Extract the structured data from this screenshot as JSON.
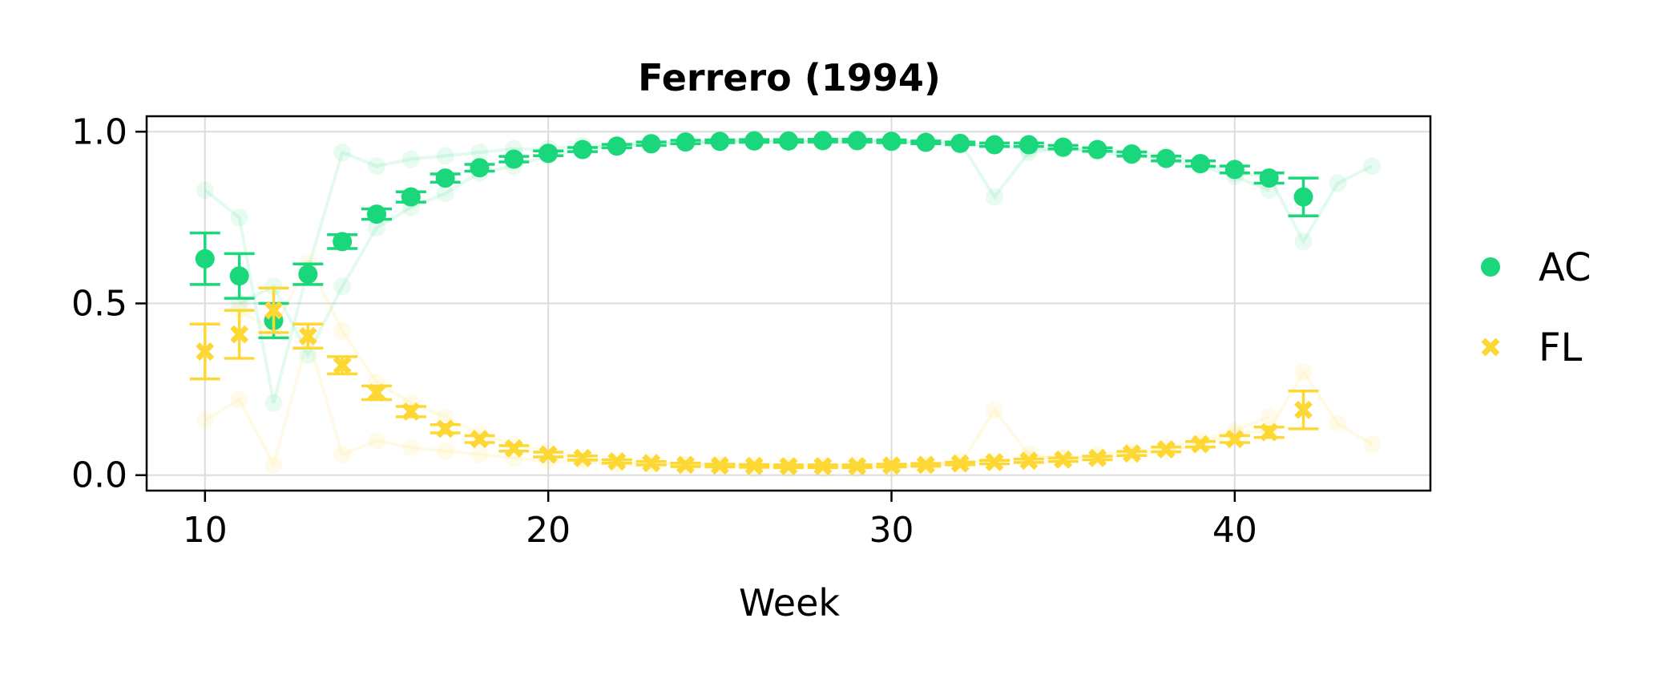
{
  "chart_data": {
    "type": "scatter",
    "title": "Ferrero (1994)",
    "xlabel": "Week",
    "ylabel": "",
    "xlim": [
      8.3,
      45.7
    ],
    "ylim": [
      -0.045,
      1.045
    ],
    "xticks": [
      10,
      20,
      30,
      40
    ],
    "yticks": [
      0.0,
      0.5,
      1.0
    ],
    "xtick_labels": [
      "10",
      "20",
      "30",
      "40"
    ],
    "ytick_labels": [
      "0.0",
      "0.5",
      "1.0"
    ],
    "grid": true,
    "legend_position": "right",
    "series": [
      {
        "name": "AC",
        "marker": "circle",
        "color": "#19d77a",
        "x": [
          10,
          11,
          12,
          13,
          14,
          15,
          16,
          17,
          18,
          19,
          20,
          21,
          22,
          23,
          24,
          25,
          26,
          27,
          28,
          29,
          30,
          31,
          32,
          33,
          34,
          35,
          36,
          37,
          38,
          39,
          40,
          41,
          42
        ],
        "y": [
          0.63,
          0.58,
          0.45,
          0.585,
          0.68,
          0.76,
          0.81,
          0.865,
          0.895,
          0.92,
          0.937,
          0.948,
          0.958,
          0.965,
          0.97,
          0.972,
          0.973,
          0.973,
          0.974,
          0.974,
          0.972,
          0.969,
          0.966,
          0.962,
          0.962,
          0.955,
          0.948,
          0.935,
          0.922,
          0.907,
          0.89,
          0.865,
          0.81
        ],
        "err": [
          0.075,
          0.065,
          0.05,
          0.03,
          0.02,
          0.015,
          0.015,
          0.012,
          0.01,
          0.008,
          0.007,
          0.006,
          0.005,
          0.005,
          0.005,
          0.004,
          0.004,
          0.004,
          0.004,
          0.004,
          0.004,
          0.004,
          0.004,
          0.005,
          0.005,
          0.005,
          0.005,
          0.006,
          0.007,
          0.008,
          0.01,
          0.015,
          0.055
        ]
      },
      {
        "name": "FL",
        "marker": "x",
        "color": "#fdd835",
        "x": [
          10,
          11,
          12,
          13,
          14,
          15,
          16,
          17,
          18,
          19,
          20,
          21,
          22,
          23,
          24,
          25,
          26,
          27,
          28,
          29,
          30,
          31,
          32,
          33,
          34,
          35,
          36,
          37,
          38,
          39,
          40,
          41,
          42
        ],
        "y": [
          0.36,
          0.41,
          0.48,
          0.405,
          0.32,
          0.24,
          0.185,
          0.135,
          0.105,
          0.078,
          0.06,
          0.05,
          0.04,
          0.035,
          0.03,
          0.028,
          0.027,
          0.026,
          0.026,
          0.026,
          0.028,
          0.03,
          0.034,
          0.038,
          0.042,
          0.045,
          0.05,
          0.063,
          0.075,
          0.09,
          0.105,
          0.125,
          0.19
        ],
        "err": [
          0.08,
          0.07,
          0.065,
          0.035,
          0.025,
          0.02,
          0.015,
          0.012,
          0.01,
          0.008,
          0.007,
          0.006,
          0.005,
          0.005,
          0.005,
          0.004,
          0.004,
          0.004,
          0.004,
          0.004,
          0.004,
          0.004,
          0.004,
          0.005,
          0.005,
          0.005,
          0.005,
          0.006,
          0.007,
          0.008,
          0.01,
          0.015,
          0.055
        ]
      }
    ],
    "individual_traces_note_free": true,
    "individual_traces": {
      "AC": [
        {
          "x": [
            10,
            11,
            12,
            13,
            14,
            15,
            16,
            17,
            18,
            19,
            20,
            21,
            22,
            23,
            24,
            25,
            26,
            27,
            28,
            29,
            30,
            31,
            32,
            33,
            34,
            35,
            36,
            37,
            38,
            39,
            40,
            41,
            42,
            43,
            44
          ],
          "y": [
            0.83,
            0.75,
            0.21,
            0.6,
            0.94,
            0.9,
            0.92,
            0.93,
            0.94,
            0.95,
            0.95,
            0.96,
            0.96,
            0.97,
            0.97,
            0.97,
            0.98,
            0.97,
            0.98,
            0.98,
            0.97,
            0.97,
            0.97,
            0.81,
            0.94,
            0.95,
            0.95,
            0.94,
            0.93,
            0.91,
            0.88,
            0.87,
            0.68,
            0.85,
            0.9
          ]
        },
        {
          "x": [
            11,
            12,
            13,
            14,
            15,
            16,
            17,
            18,
            19,
            20,
            21,
            22,
            23,
            24,
            25,
            26,
            27,
            28,
            29,
            30,
            31,
            32,
            33,
            34,
            35,
            36,
            37,
            38,
            39,
            40,
            41
          ],
          "y": [
            0.5,
            0.55,
            0.35,
            0.55,
            0.72,
            0.78,
            0.82,
            0.88,
            0.9,
            0.93,
            0.95,
            0.96,
            0.96,
            0.97,
            0.97,
            0.97,
            0.97,
            0.97,
            0.97,
            0.97,
            0.97,
            0.96,
            0.96,
            0.95,
            0.95,
            0.94,
            0.93,
            0.92,
            0.9,
            0.87,
            0.83
          ]
        }
      ],
      "FL": [
        {
          "x": [
            10,
            11,
            12,
            13,
            14,
            15,
            16,
            17,
            18,
            19,
            20,
            21,
            22,
            23,
            24,
            25,
            26,
            27,
            28,
            29,
            30,
            31,
            32,
            33,
            34,
            35,
            36,
            37,
            38,
            39,
            40,
            41,
            42,
            43,
            44
          ],
          "y": [
            0.16,
            0.22,
            0.03,
            0.4,
            0.06,
            0.1,
            0.08,
            0.07,
            0.06,
            0.05,
            0.04,
            0.04,
            0.03,
            0.03,
            0.03,
            0.03,
            0.02,
            0.02,
            0.02,
            0.02,
            0.02,
            0.03,
            0.03,
            0.19,
            0.06,
            0.05,
            0.05,
            0.06,
            0.07,
            0.09,
            0.12,
            0.13,
            0.3,
            0.15,
            0.09
          ]
        },
        {
          "x": [
            11,
            12,
            13,
            14,
            15,
            16,
            17,
            18,
            19,
            20,
            21,
            22,
            23,
            24,
            25,
            26,
            27,
            28,
            29,
            30,
            31,
            32,
            33,
            34,
            35,
            36,
            37,
            38,
            39,
            40,
            41
          ],
          "y": [
            0.48,
            0.42,
            0.62,
            0.42,
            0.27,
            0.21,
            0.17,
            0.12,
            0.09,
            0.07,
            0.05,
            0.04,
            0.04,
            0.03,
            0.03,
            0.03,
            0.03,
            0.03,
            0.03,
            0.03,
            0.03,
            0.04,
            0.04,
            0.05,
            0.05,
            0.06,
            0.07,
            0.08,
            0.1,
            0.13,
            0.17
          ]
        }
      ]
    }
  }
}
